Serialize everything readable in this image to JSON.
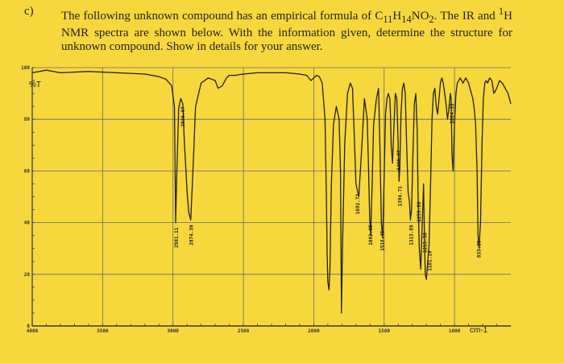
{
  "question": {
    "label": "c)",
    "line1_before": "The following unknown compound has an empirical formula of C",
    "c_sub": "11",
    "h": "H",
    "h_sub": "14",
    "no": "NO",
    "o_sub": "2",
    "line1_after": ". The IR and ",
    "nmr_sup": "1",
    "nmr_h": "H",
    "rest": " NMR spectra are shown below. With the information given, determine the structure for unknown compound. Show in details for your answer."
  },
  "chart_data": {
    "type": "line",
    "title": "",
    "xlabel": "",
    "ylabel": "%T",
    "x_unit": "cm-1",
    "xlim": [
      4000,
      600
    ],
    "ylim": [
      0,
      100
    ],
    "x_ticks": [
      "4000",
      "3500",
      "3000",
      "2500",
      "2000",
      "1500",
      "1000"
    ],
    "y_ticks": [
      "0",
      "20",
      "40",
      "60",
      "80",
      "100"
    ],
    "grid": true,
    "series": [
      {
        "x": [
          4000,
          3900,
          3800,
          3600,
          3400,
          3200,
          3100,
          3050,
          3010,
          2990,
          2981,
          2975,
          2960,
          2945,
          2930,
          2920,
          2900,
          2888,
          2874,
          2860,
          2840,
          2800,
          2750,
          2700,
          2680,
          2650,
          2620,
          2600,
          2560,
          2500,
          2400,
          2300,
          2200,
          2100,
          2050,
          2020,
          2000,
          1980,
          1960,
          1940,
          1920,
          1910,
          1905,
          1900,
          1892,
          1885,
          1875,
          1860,
          1840,
          1820,
          1810,
          1803,
          1796,
          1780,
          1760,
          1740,
          1725,
          1715,
          1700,
          1680,
          1660,
          1640,
          1620,
          1610,
          1603,
          1596,
          1585,
          1575,
          1555,
          1540,
          1530,
          1520,
          1510,
          1500,
          1490,
          1480,
          1470,
          1460,
          1455,
          1450,
          1440,
          1430,
          1420,
          1410,
          1400,
          1394,
          1388,
          1380,
          1370,
          1360,
          1350,
          1340,
          1330,
          1320,
          1313,
          1305,
          1295,
          1285,
          1275,
          1265,
          1259,
          1250,
          1240,
          1230,
          1220,
          1215,
          1208,
          1200,
          1190,
          1181,
          1170,
          1160,
          1150,
          1140,
          1130,
          1120,
          1110,
          1100,
          1090,
          1080,
          1070,
          1060,
          1050,
          1040,
          1030,
          1024,
          1018,
          1010,
          1000,
          990,
          980,
          970,
          960,
          950,
          940,
          930,
          920,
          910,
          900,
          890,
          880,
          870,
          860,
          850,
          840,
          833,
          826,
          815,
          805,
          795,
          785,
          775,
          765,
          750,
          735,
          720,
          700,
          680,
          660,
          640,
          620,
          600
        ],
        "y": [
          98,
          99,
          98,
          98.5,
          98,
          97.5,
          96.5,
          95.5,
          93,
          85,
          40,
          55,
          84,
          88,
          86,
          72,
          52,
          44,
          41,
          58,
          85,
          94,
          96,
          95,
          92,
          93,
          96,
          97,
          97,
          97.5,
          98,
          98,
          98,
          97.5,
          97,
          95,
          96,
          97,
          96.5,
          94,
          80,
          50,
          28,
          17,
          14,
          22,
          55,
          78,
          85,
          80,
          60,
          5,
          30,
          70,
          90,
          94,
          92,
          78,
          55,
          50,
          68,
          88,
          80,
          60,
          42,
          35,
          55,
          78,
          88,
          92,
          70,
          40,
          34,
          58,
          82,
          88,
          90,
          88,
          82,
          70,
          63,
          78,
          90,
          88,
          70,
          56,
          62,
          82,
          92,
          94,
          90,
          70,
          52,
          48,
          41,
          45,
          68,
          86,
          90,
          76,
          50,
          30,
          22,
          38,
          55,
          38,
          20,
          18,
          25,
          31,
          55,
          80,
          90,
          92,
          85,
          82,
          88,
          94,
          96,
          94,
          90,
          86,
          80,
          84,
          90,
          88,
          66,
          60,
          78,
          90,
          94,
          95,
          96,
          95,
          94,
          95,
          96,
          95,
          94,
          92,
          90,
          88,
          84,
          78,
          60,
          35,
          30,
          40,
          70,
          88,
          94,
          95,
          94,
          96,
          95,
          90,
          92,
          95,
          94,
          92,
          90,
          86
        ]
      }
    ],
    "annotations": [
      {
        "label": "2981.11",
        "x": 2981
      },
      {
        "label": "2936.07",
        "x": 2936
      },
      {
        "label": "2874.39",
        "x": 2874
      },
      {
        "label": "1692.72",
        "x": 1692
      },
      {
        "label": "1602.05",
        "x": 1602
      },
      {
        "label": "1518.45",
        "x": 1518
      },
      {
        "label": "1400.02",
        "x": 1400
      },
      {
        "label": "1394.71",
        "x": 1394
      },
      {
        "label": "1313.89",
        "x": 1313
      },
      {
        "label": "1259.86",
        "x": 1259
      },
      {
        "label": "1215.38",
        "x": 1215
      },
      {
        "label": "1181.19",
        "x": 1181
      },
      {
        "label": "1024.33",
        "x": 1024
      },
      {
        "label": "833.35",
        "x": 833
      }
    ]
  },
  "colors": {
    "background": "#f6d83c",
    "axis": "#3a3a3a",
    "grid": "#6a6a6a",
    "trace": "#222222"
  }
}
